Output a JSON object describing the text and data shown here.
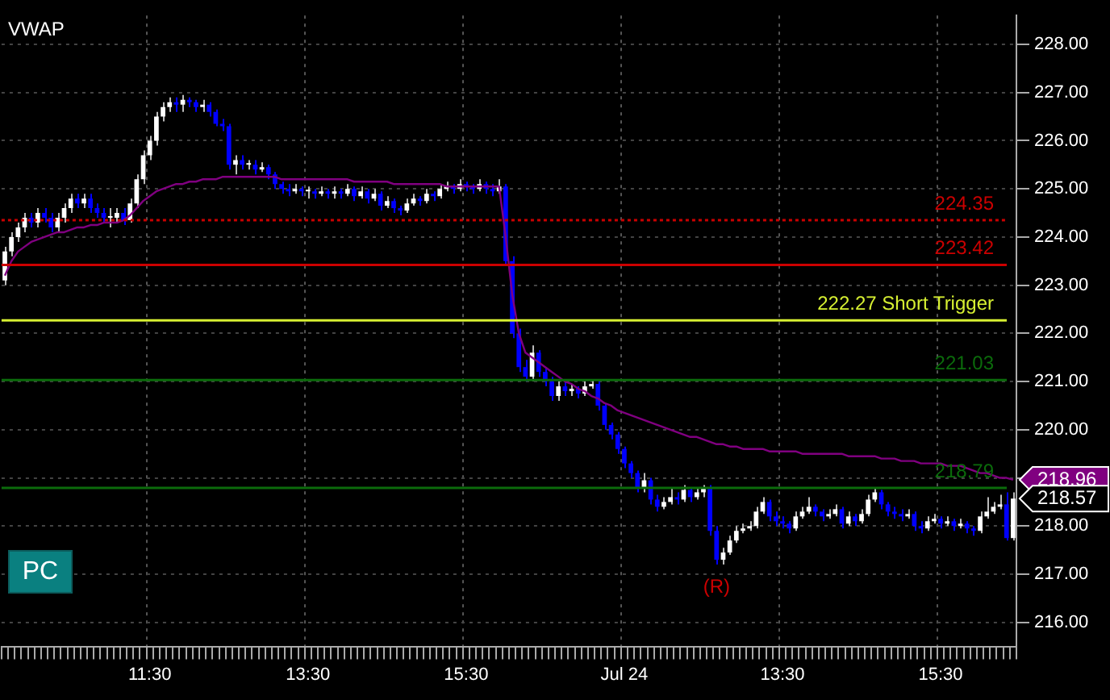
{
  "chart_data": {
    "type": "candlestick",
    "title": "VWAP",
    "categories": [
      null,
      null,
      null,
      null,
      null,
      null,
      null,
      null,
      null,
      null,
      null,
      null,
      null,
      null,
      null,
      null,
      null,
      null,
      null,
      null,
      null,
      null,
      "11:30",
      null,
      null,
      null,
      null,
      null,
      null,
      null,
      null,
      null,
      null,
      null,
      null,
      null,
      null,
      null,
      null,
      null,
      null,
      null,
      null,
      null,
      null,
      null,
      "13:30",
      null,
      null,
      null,
      null,
      null,
      null,
      null,
      null,
      null,
      null,
      null,
      null,
      null,
      null,
      null,
      null,
      null,
      null,
      null,
      null,
      null,
      null,
      null,
      "15:30",
      null,
      null,
      null,
      null,
      null,
      null,
      null,
      null,
      null,
      null,
      null,
      null,
      null,
      null,
      null,
      null,
      null,
      null,
      null,
      null,
      null,
      null,
      null,
      "Jul 24",
      null,
      null,
      null,
      null,
      null,
      null,
      null,
      null,
      null,
      null,
      null,
      null,
      null,
      null,
      null,
      null,
      null,
      null,
      null,
      null,
      null,
      null,
      null,
      "13:30",
      null,
      null,
      null,
      null,
      null,
      null,
      null,
      null,
      null,
      null,
      null,
      null,
      null,
      null,
      null,
      null,
      null,
      null,
      null,
      null,
      null,
      null,
      null,
      "15:30",
      null,
      null,
      null,
      null,
      null,
      null,
      null,
      null,
      null,
      null,
      null
    ],
    "ohlc": [
      [
        223.1,
        223.8,
        223.0,
        223.7
      ],
      [
        223.7,
        224.1,
        223.6,
        224.0
      ],
      [
        224.0,
        224.3,
        223.9,
        224.2
      ],
      [
        224.2,
        224.5,
        224.1,
        224.4
      ],
      [
        224.4,
        224.5,
        224.2,
        224.3
      ],
      [
        224.3,
        224.6,
        224.2,
        224.5
      ],
      [
        224.5,
        224.6,
        224.3,
        224.4
      ],
      [
        224.4,
        224.5,
        224.1,
        224.2
      ],
      [
        224.2,
        224.5,
        224.1,
        224.4
      ],
      [
        224.4,
        224.7,
        224.3,
        224.6
      ],
      [
        224.6,
        224.9,
        224.5,
        224.8
      ],
      [
        224.8,
        224.9,
        224.6,
        224.7
      ],
      [
        224.7,
        224.9,
        224.6,
        224.8
      ],
      [
        224.8,
        224.9,
        224.5,
        224.6
      ],
      [
        224.6,
        224.7,
        224.4,
        224.5
      ],
      [
        224.5,
        224.6,
        224.3,
        224.4
      ],
      [
        224.4,
        224.6,
        224.2,
        224.4
      ],
      [
        224.4,
        224.6,
        224.3,
        224.5
      ],
      [
        224.5,
        224.6,
        224.25,
        224.35
      ],
      [
        224.35,
        224.8,
        224.3,
        224.7
      ],
      [
        224.7,
        225.3,
        224.6,
        225.2
      ],
      [
        225.2,
        225.8,
        225.1,
        225.7
      ],
      [
        225.7,
        226.1,
        225.6,
        226.0
      ],
      [
        226.0,
        226.6,
        225.9,
        226.5
      ],
      [
        226.5,
        226.8,
        226.4,
        226.7
      ],
      [
        226.7,
        226.9,
        226.6,
        226.8
      ],
      [
        226.8,
        226.9,
        226.6,
        226.75
      ],
      [
        226.75,
        226.95,
        226.6,
        226.85
      ],
      [
        226.85,
        226.9,
        226.7,
        226.8
      ],
      [
        226.8,
        226.85,
        226.6,
        226.7
      ],
      [
        226.7,
        226.85,
        226.6,
        226.75
      ],
      [
        226.75,
        226.8,
        226.5,
        226.6
      ],
      [
        226.6,
        226.65,
        226.3,
        226.35
      ],
      [
        226.35,
        226.45,
        226.2,
        226.3
      ],
      [
        226.3,
        226.35,
        225.4,
        225.5
      ],
      [
        225.5,
        225.7,
        225.3,
        225.6
      ],
      [
        225.6,
        225.7,
        225.4,
        225.5
      ],
      [
        225.5,
        225.6,
        225.4,
        225.5
      ],
      [
        225.5,
        225.6,
        225.3,
        225.4
      ],
      [
        225.4,
        225.55,
        225.35,
        225.45
      ],
      [
        225.45,
        225.5,
        225.2,
        225.3
      ],
      [
        225.3,
        225.35,
        225.0,
        225.1
      ],
      [
        225.1,
        225.15,
        224.9,
        225.0
      ],
      [
        225.0,
        225.1,
        224.85,
        224.95
      ],
      [
        224.95,
        225.1,
        224.9,
        225.0
      ],
      [
        225.0,
        225.05,
        224.85,
        224.95
      ],
      [
        224.95,
        225.05,
        224.8,
        224.95
      ],
      [
        224.95,
        225.0,
        224.8,
        224.9
      ],
      [
        224.9,
        225.05,
        224.85,
        224.95
      ],
      [
        224.95,
        225.0,
        224.8,
        224.9
      ],
      [
        224.9,
        225.05,
        224.8,
        224.95
      ],
      [
        224.95,
        225.0,
        224.8,
        224.9
      ],
      [
        224.9,
        225.1,
        224.85,
        225.0
      ],
      [
        225.0,
        225.05,
        224.75,
        224.85
      ],
      [
        224.85,
        225.05,
        224.8,
        224.95
      ],
      [
        224.95,
        225.0,
        224.7,
        224.8
      ],
      [
        224.8,
        225.0,
        224.75,
        224.9
      ],
      [
        224.9,
        224.95,
        224.55,
        224.65
      ],
      [
        224.65,
        224.85,
        224.6,
        224.75
      ],
      [
        224.75,
        224.8,
        224.5,
        224.6
      ],
      [
        224.6,
        224.65,
        224.45,
        224.55
      ],
      [
        224.55,
        224.8,
        224.5,
        224.7
      ],
      [
        224.7,
        224.9,
        224.65,
        224.8
      ],
      [
        224.8,
        224.85,
        224.65,
        224.75
      ],
      [
        224.75,
        225.0,
        224.7,
        224.9
      ],
      [
        224.9,
        224.95,
        224.75,
        224.85
      ],
      [
        224.85,
        225.1,
        224.8,
        225.0
      ],
      [
        225.0,
        225.15,
        224.95,
        225.05
      ],
      [
        225.05,
        225.1,
        224.9,
        225.0
      ],
      [
        225.0,
        225.2,
        224.95,
        225.1
      ],
      [
        225.1,
        225.15,
        224.95,
        225.05
      ],
      [
        225.05,
        225.1,
        224.9,
        225.0
      ],
      [
        225.0,
        225.2,
        224.95,
        225.1
      ],
      [
        225.1,
        225.15,
        224.9,
        225.0
      ],
      [
        225.0,
        225.1,
        224.85,
        224.95
      ],
      [
        224.95,
        225.2,
        224.9,
        225.05
      ],
      [
        225.05,
        225.1,
        223.4,
        223.5
      ],
      [
        223.5,
        223.6,
        221.9,
        222.0
      ],
      [
        222.0,
        222.1,
        221.2,
        221.3
      ],
      [
        221.3,
        221.45,
        221.0,
        221.1
      ],
      [
        221.1,
        221.75,
        221.0,
        221.6
      ],
      [
        221.6,
        221.65,
        221.1,
        221.2
      ],
      [
        221.2,
        221.3,
        220.9,
        221.0
      ],
      [
        221.0,
        221.1,
        220.6,
        220.7
      ],
      [
        220.7,
        221.0,
        220.6,
        220.9
      ],
      [
        220.9,
        221.0,
        220.7,
        220.8
      ],
      [
        220.8,
        220.95,
        220.7,
        220.85
      ],
      [
        220.85,
        220.9,
        220.65,
        220.75
      ],
      [
        220.75,
        221.0,
        220.7,
        220.9
      ],
      [
        220.9,
        221.05,
        220.85,
        220.95
      ],
      [
        220.95,
        221.0,
        220.4,
        220.5
      ],
      [
        220.5,
        220.55,
        220.0,
        220.1
      ],
      [
        220.1,
        220.15,
        219.8,
        219.9
      ],
      [
        219.9,
        219.95,
        219.5,
        219.6
      ],
      [
        219.6,
        219.65,
        219.2,
        219.3
      ],
      [
        219.3,
        219.35,
        219.0,
        219.1
      ],
      [
        219.1,
        219.15,
        218.7,
        218.8
      ],
      [
        218.8,
        219.1,
        218.7,
        218.95
      ],
      [
        218.95,
        219.0,
        218.45,
        218.55
      ],
      [
        218.55,
        218.65,
        218.3,
        218.4
      ],
      [
        218.4,
        218.6,
        218.35,
        218.5
      ],
      [
        218.5,
        218.8,
        218.45,
        218.6
      ],
      [
        218.6,
        218.7,
        218.45,
        218.55
      ],
      [
        218.55,
        218.85,
        218.5,
        218.75
      ],
      [
        218.75,
        218.8,
        218.5,
        218.6
      ],
      [
        218.6,
        218.8,
        218.55,
        218.7
      ],
      [
        218.7,
        218.85,
        218.6,
        218.8
      ],
      [
        218.8,
        218.85,
        217.8,
        217.9
      ],
      [
        217.9,
        218.0,
        217.2,
        217.3
      ],
      [
        217.3,
        217.55,
        217.2,
        217.45
      ],
      [
        217.45,
        217.8,
        217.4,
        217.7
      ],
      [
        217.7,
        218.0,
        217.65,
        217.9
      ],
      [
        217.9,
        218.05,
        217.85,
        217.95
      ],
      [
        217.95,
        218.1,
        217.9,
        218.0
      ],
      [
        218.0,
        218.4,
        217.95,
        218.3
      ],
      [
        218.3,
        218.6,
        218.25,
        218.5
      ],
      [
        218.5,
        218.55,
        218.1,
        218.2
      ],
      [
        218.2,
        218.3,
        218.0,
        218.1
      ],
      [
        218.1,
        218.2,
        217.95,
        218.05
      ],
      [
        218.05,
        218.1,
        217.85,
        217.95
      ],
      [
        217.95,
        218.3,
        217.9,
        218.2
      ],
      [
        218.2,
        218.4,
        218.15,
        218.3
      ],
      [
        218.3,
        218.6,
        218.25,
        218.4
      ],
      [
        218.4,
        218.45,
        218.2,
        218.3
      ],
      [
        218.3,
        218.35,
        218.1,
        218.2
      ],
      [
        218.2,
        218.35,
        218.15,
        218.25
      ],
      [
        218.25,
        218.45,
        218.2,
        218.35
      ],
      [
        218.35,
        218.4,
        217.95,
        218.05
      ],
      [
        218.05,
        218.3,
        218.0,
        218.2
      ],
      [
        218.2,
        218.25,
        218.0,
        218.1
      ],
      [
        218.1,
        218.35,
        218.05,
        218.25
      ],
      [
        218.25,
        218.65,
        218.2,
        218.55
      ],
      [
        218.55,
        218.8,
        218.5,
        218.7
      ],
      [
        218.7,
        218.75,
        218.35,
        218.45
      ],
      [
        218.45,
        218.5,
        218.2,
        218.3
      ],
      [
        218.3,
        218.4,
        218.15,
        218.25
      ],
      [
        218.25,
        218.35,
        218.1,
        218.2
      ],
      [
        218.2,
        218.35,
        218.15,
        218.25
      ],
      [
        218.25,
        218.3,
        217.9,
        218.0
      ],
      [
        218.0,
        218.1,
        217.85,
        217.95
      ],
      [
        217.95,
        218.2,
        217.9,
        218.1
      ],
      [
        218.1,
        218.25,
        218.05,
        218.15
      ],
      [
        218.15,
        218.2,
        217.95,
        218.05
      ],
      [
        218.05,
        218.2,
        218.0,
        218.1
      ],
      [
        218.1,
        218.15,
        217.9,
        218.0
      ],
      [
        218.0,
        218.15,
        217.95,
        218.05
      ],
      [
        218.05,
        218.1,
        217.85,
        217.95
      ],
      [
        217.95,
        218.0,
        217.8,
        217.9
      ],
      [
        217.9,
        218.3,
        217.85,
        218.2
      ],
      [
        218.2,
        218.6,
        218.15,
        218.3
      ],
      [
        218.3,
        218.5,
        218.25,
        218.4
      ],
      [
        218.4,
        218.65,
        218.35,
        218.45
      ],
      [
        218.45,
        218.7,
        217.7,
        217.75
      ],
      [
        217.75,
        218.7,
        217.7,
        218.57
      ]
    ],
    "colors": [
      "#ffffff",
      "#ffffff",
      "#ffffff",
      "#ffffff",
      "#0000ff",
      "#ffffff",
      "#0000ff",
      "#0000ff",
      "#ffffff",
      "#ffffff",
      "#ffffff",
      "#0000ff",
      "#ffffff",
      "#0000ff",
      "#0000ff",
      "#0000ff",
      "#ffffff",
      "#ffffff",
      "#0000ff",
      "#ffffff",
      "#ffffff",
      "#ffffff",
      "#ffffff",
      "#ffffff",
      "#ffffff",
      "#ffffff",
      "#0000ff",
      "#ffffff",
      "#0000ff",
      "#0000ff",
      "#ffffff",
      "#0000ff",
      "#0000ff",
      "#0000ff",
      "#0000ff",
      "#ffffff",
      "#0000ff",
      "#ffffff",
      "#0000ff",
      "#ffffff",
      "#0000ff",
      "#0000ff",
      "#0000ff",
      "#0000ff",
      "#ffffff",
      "#0000ff",
      "#ffffff",
      "#0000ff",
      "#ffffff",
      "#0000ff",
      "#ffffff",
      "#0000ff",
      "#ffffff",
      "#0000ff",
      "#ffffff",
      "#0000ff",
      "#ffffff",
      "#0000ff",
      "#ffffff",
      "#0000ff",
      "#0000ff",
      "#ffffff",
      "#ffffff",
      "#0000ff",
      "#ffffff",
      "#0000ff",
      "#ffffff",
      "#ffffff",
      "#0000ff",
      "#ffffff",
      "#0000ff",
      "#0000ff",
      "#ffffff",
      "#0000ff",
      "#0000ff",
      "#ffffff",
      "#0000ff",
      "#0000ff",
      "#0000ff",
      "#0000ff",
      "#ffffff",
      "#0000ff",
      "#0000ff",
      "#0000ff",
      "#ffffff",
      "#0000ff",
      "#ffffff",
      "#0000ff",
      "#ffffff",
      "#ffffff",
      "#0000ff",
      "#0000ff",
      "#0000ff",
      "#0000ff",
      "#0000ff",
      "#0000ff",
      "#0000ff",
      "#ffffff",
      "#0000ff",
      "#0000ff",
      "#ffffff",
      "#ffffff",
      "#0000ff",
      "#ffffff",
      "#0000ff",
      "#ffffff",
      "#ffffff",
      "#0000ff",
      "#0000ff",
      "#ffffff",
      "#ffffff",
      "#ffffff",
      "#ffffff",
      "#ffffff",
      "#ffffff",
      "#ffffff",
      "#0000ff",
      "#0000ff",
      "#0000ff",
      "#0000ff",
      "#ffffff",
      "#ffffff",
      "#ffffff",
      "#0000ff",
      "#0000ff",
      "#ffffff",
      "#ffffff",
      "#0000ff",
      "#ffffff",
      "#0000ff",
      "#ffffff",
      "#ffffff",
      "#ffffff",
      "#0000ff",
      "#0000ff",
      "#0000ff",
      "#0000ff",
      "#ffffff",
      "#0000ff",
      "#0000ff",
      "#ffffff",
      "#ffffff",
      "#0000ff",
      "#ffffff",
      "#0000ff",
      "#ffffff",
      "#0000ff",
      "#0000ff",
      "#ffffff",
      "#ffffff",
      "#ffffff",
      "#ffffff",
      "#0000ff",
      "#ffffff"
    ],
    "series": [
      {
        "type": "line",
        "color": "#800080",
        "values": [
          223.2,
          223.5,
          223.7,
          223.8,
          223.9,
          223.95,
          224.0,
          224.05,
          224.1,
          224.1,
          224.15,
          224.2,
          224.2,
          224.25,
          224.25,
          224.3,
          224.3,
          224.3,
          224.35,
          224.45,
          224.6,
          224.75,
          224.85,
          224.95,
          225.0,
          225.05,
          225.1,
          225.1,
          225.15,
          225.15,
          225.2,
          225.2,
          225.2,
          225.25,
          225.25,
          225.25,
          225.25,
          225.25,
          225.25,
          225.25,
          225.25,
          225.25,
          225.2,
          225.2,
          225.2,
          225.2,
          225.2,
          225.2,
          225.2,
          225.2,
          225.2,
          225.2,
          225.2,
          225.15,
          225.15,
          225.15,
          225.15,
          225.15,
          225.15,
          225.1,
          225.1,
          225.1,
          225.1,
          225.1,
          225.1,
          225.1,
          225.1,
          225.05,
          225.05,
          225.05,
          225.05,
          225.05,
          225.05,
          225.05,
          225.05,
          225.05,
          224.0,
          222.8,
          222.0,
          221.6,
          221.5,
          221.4,
          221.3,
          221.2,
          221.1,
          221.0,
          220.95,
          220.85,
          220.8,
          220.7,
          220.65,
          220.55,
          220.5,
          220.4,
          220.35,
          220.3,
          220.25,
          220.2,
          220.15,
          220.1,
          220.05,
          220.0,
          219.95,
          219.9,
          219.85,
          219.85,
          219.8,
          219.75,
          219.7,
          219.7,
          219.65,
          219.65,
          219.6,
          219.6,
          219.6,
          219.6,
          219.55,
          219.55,
          219.55,
          219.55,
          219.55,
          219.5,
          219.5,
          219.5,
          219.5,
          219.5,
          219.5,
          219.5,
          219.45,
          219.45,
          219.45,
          219.45,
          219.45,
          219.4,
          219.4,
          219.4,
          219.35,
          219.35,
          219.35,
          219.3,
          219.3,
          219.3,
          219.3,
          219.25,
          219.25,
          219.25,
          219.2,
          219.15,
          219.1,
          219.1,
          219.05,
          219.0,
          219.0,
          218.96
        ]
      }
    ],
    "ylim": [
      215.5,
      228.6
    ],
    "yticks": [
      {
        "value": 216,
        "label": "216.00"
      },
      {
        "value": 217,
        "label": "217.00"
      },
      {
        "value": 218,
        "label": "218.00"
      },
      {
        "value": 219,
        "label": null
      },
      {
        "value": 220,
        "label": "220.00"
      },
      {
        "value": 221,
        "label": "221.00"
      },
      {
        "value": 222,
        "label": "222.00"
      },
      {
        "value": 223,
        "label": "223.00"
      },
      {
        "value": 224,
        "label": "224.00"
      },
      {
        "value": 225,
        "label": "225.00"
      },
      {
        "value": 226,
        "label": "226.00"
      },
      {
        "value": 227,
        "label": "227.00"
      },
      {
        "value": 228,
        "label": "228.00"
      }
    ],
    "grid": true,
    "ref_lines": [
      {
        "axis": "y",
        "value": 224.35,
        "label": "224.35",
        "color": "#cc0000",
        "line_style": "dotted"
      },
      {
        "axis": "y",
        "value": 223.42,
        "label": "223.42",
        "color": "#cc0000",
        "line_style": "solid"
      },
      {
        "axis": "y",
        "value": 222.27,
        "label": "222.27 Short Trigger",
        "color": "#d7f032",
        "line_style": "solid"
      },
      {
        "axis": "y",
        "value": 221.03,
        "label": "221.03",
        "color": "#0b6b0b",
        "line_style": "solid"
      },
      {
        "axis": "y",
        "value": 218.79,
        "label": "218.79",
        "color": "#0b6b0b",
        "line_style": "solid"
      }
    ],
    "annotations": [
      "PC",
      "(R)",
      "218.96",
      "218.57"
    ]
  }
}
